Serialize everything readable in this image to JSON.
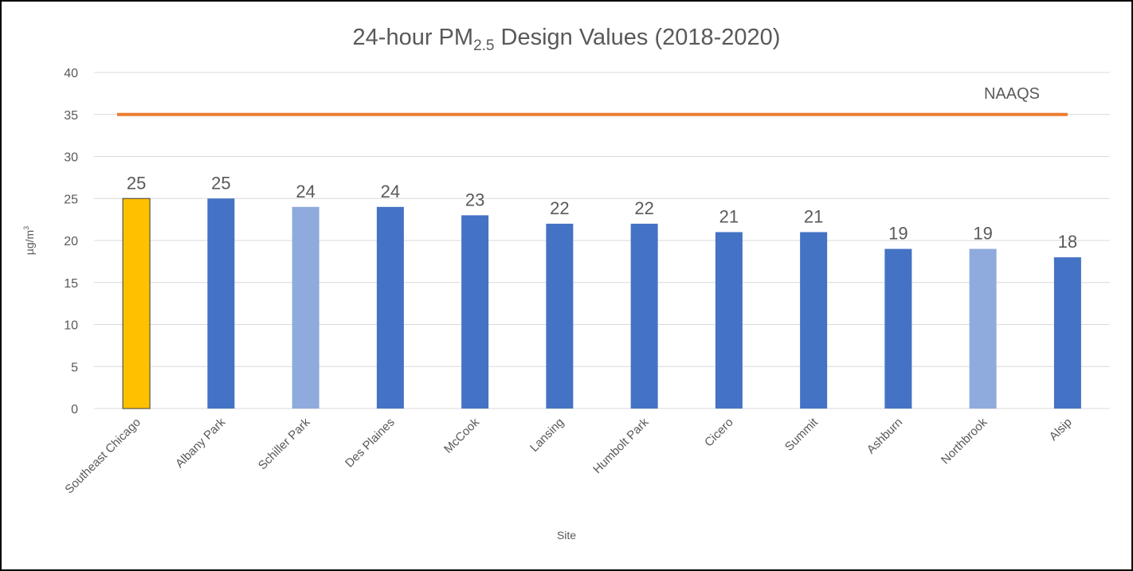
{
  "chart_data": {
    "type": "bar",
    "title": [
      "24-hour PM",
      "2.5",
      " Design Values (2018-2020)"
    ],
    "y_label": [
      "µg/m",
      "3"
    ],
    "x_label": "Site",
    "categories": [
      "Southeast Chicago",
      "Albany Park",
      "Schiller Park",
      "Des Plaines",
      "McCook",
      "Lansing",
      "Humbolt Park",
      "Cicero",
      "Summit",
      "Ashburn",
      "Northbrook",
      "Alsip"
    ],
    "values": [
      25,
      25,
      24,
      24,
      23,
      22,
      22,
      21,
      21,
      19,
      19,
      18
    ],
    "colors": [
      "#FFC000",
      "#4472C4",
      "#8FAADC",
      "#4472C4",
      "#4472C4",
      "#4472C4",
      "#4472C4",
      "#4472C4",
      "#4472C4",
      "#4472C4",
      "#8FAADC",
      "#4472C4"
    ],
    "reference_line": {
      "value": 35,
      "label": "NAAQS",
      "color": "#ED7D31"
    },
    "ylim": [
      0,
      40
    ],
    "yticks": [
      0,
      5,
      10,
      15,
      20,
      25,
      30,
      35,
      40
    ],
    "grid": true
  }
}
